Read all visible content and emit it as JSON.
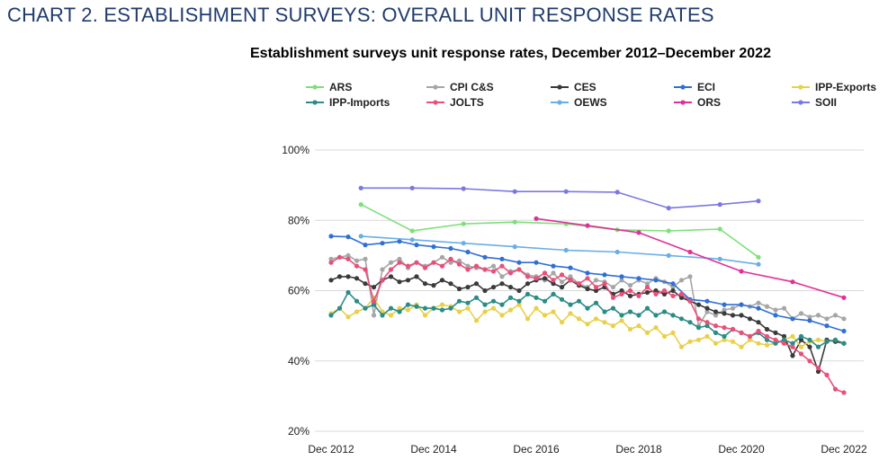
{
  "heading": "CHART 2. ESTABLISHMENT SURVEYS: OVERALL UNIT RESPONSE RATES",
  "chart_data": {
    "type": "line",
    "title": "Establishment surveys unit response rates, December 2012–December 2022",
    "xlabel": "",
    "ylabel": "",
    "x_range": [
      2012.917,
      2022.917
    ],
    "ylim": [
      20,
      100
    ],
    "y_ticks": [
      20,
      40,
      60,
      80,
      100
    ],
    "y_tick_labels": [
      "20%",
      "40%",
      "60%",
      "80%",
      "100%"
    ],
    "x_ticks": [
      2012.917,
      2014.917,
      2016.917,
      2018.917,
      2020.917,
      2022.917
    ],
    "x_tick_labels": [
      "Dec 2012",
      "Dec 2014",
      "Dec 2016",
      "Dec 2018",
      "Dec 2020",
      "Dec 2022"
    ],
    "grid": "horizontal",
    "legend_position": "top",
    "series": [
      {
        "name": "ARS",
        "color": "#7ee07a",
        "x": [
          2013.5,
          2014.5,
          2015.5,
          2016.5,
          2017.5,
          2018.5,
          2019.5,
          2020.5,
          2021.25
        ],
        "y": [
          84.5,
          77,
          79,
          79.5,
          79,
          77.3,
          77,
          77.5,
          69.5
        ]
      },
      {
        "name": "CPI C&S",
        "color": "#a6a6a6",
        "x": [
          2012.917,
          2013.083,
          2013.25,
          2013.417,
          2013.583,
          2013.75,
          2013.917,
          2014.083,
          2014.25,
          2014.417,
          2014.583,
          2014.75,
          2014.917,
          2015.083,
          2015.25,
          2015.417,
          2015.583,
          2015.75,
          2015.917,
          2016.083,
          2016.25,
          2016.417,
          2016.583,
          2016.75,
          2016.917,
          2017.083,
          2017.25,
          2017.417,
          2017.583,
          2017.75,
          2017.917,
          2018.083,
          2018.25,
          2018.417,
          2018.583,
          2018.75,
          2018.917,
          2019.083,
          2019.25,
          2019.417,
          2019.583,
          2019.75,
          2019.917,
          2020.083,
          2020.25,
          2020.417,
          2020.583,
          2020.75,
          2020.917,
          2021.083,
          2021.25,
          2021.417,
          2021.583,
          2021.75,
          2021.917,
          2022.083,
          2022.25,
          2022.417,
          2022.583,
          2022.75,
          2022.917
        ],
        "y": [
          69,
          69.5,
          70,
          68.5,
          69,
          53,
          66,
          68,
          69,
          66.5,
          68,
          67,
          68,
          69.5,
          68,
          68.5,
          67,
          66.5,
          66,
          67,
          64,
          65.5,
          66,
          64.5,
          64,
          63,
          65,
          62.5,
          64,
          62,
          61,
          63,
          62.5,
          61,
          63,
          61.5,
          63,
          62,
          63.5,
          62.5,
          61,
          63,
          64,
          50,
          54,
          53,
          54.5,
          55,
          56,
          55.5,
          56.5,
          55.5,
          54.5,
          55,
          52,
          53.5,
          52.5,
          53,
          52,
          53,
          52
        ]
      },
      {
        "name": "CES",
        "color": "#3a3a3a",
        "x": [
          2012.917,
          2013.083,
          2013.25,
          2013.417,
          2013.583,
          2013.75,
          2013.917,
          2014.083,
          2014.25,
          2014.417,
          2014.583,
          2014.75,
          2014.917,
          2015.083,
          2015.25,
          2015.417,
          2015.583,
          2015.75,
          2015.917,
          2016.083,
          2016.25,
          2016.417,
          2016.583,
          2016.75,
          2016.917,
          2017.083,
          2017.25,
          2017.417,
          2017.583,
          2017.75,
          2017.917,
          2018.083,
          2018.25,
          2018.417,
          2018.583,
          2018.75,
          2018.917,
          2019.083,
          2019.25,
          2019.417,
          2019.583,
          2019.75,
          2019.917,
          2020.083,
          2020.25,
          2020.417,
          2020.583,
          2020.75,
          2020.917,
          2021.083,
          2021.25,
          2021.417,
          2021.583,
          2021.75,
          2021.917,
          2022.083,
          2022.25,
          2022.417,
          2022.583,
          2022.75,
          2022.917
        ],
        "y": [
          63,
          64,
          64,
          63.5,
          62,
          61,
          63,
          64,
          62.5,
          63,
          64,
          62,
          61.5,
          63,
          62,
          60.5,
          61,
          62,
          60,
          61,
          62,
          61,
          60,
          62,
          63,
          63.5,
          62,
          61,
          63,
          61.5,
          60.5,
          60,
          61,
          59,
          60,
          58.5,
          59,
          59.5,
          60,
          59,
          60,
          58,
          57,
          56,
          55,
          54,
          53.5,
          53,
          53,
          52,
          51,
          49,
          48,
          47,
          41.5,
          46,
          44,
          37,
          46,
          45.5,
          45
        ]
      },
      {
        "name": "ECI",
        "color": "#2f6fd6",
        "x": [
          2012.917,
          2013.25,
          2013.583,
          2013.917,
          2014.25,
          2014.583,
          2014.917,
          2015.25,
          2015.583,
          2015.917,
          2016.25,
          2016.583,
          2016.917,
          2017.25,
          2017.583,
          2017.917,
          2018.25,
          2018.583,
          2018.917,
          2019.25,
          2019.583,
          2019.917,
          2020.25,
          2020.583,
          2020.917,
          2021.25,
          2021.583,
          2021.917,
          2022.25,
          2022.583,
          2022.917
        ],
        "y": [
          75.5,
          75.3,
          73,
          73.5,
          74,
          73,
          72.5,
          72,
          71,
          69.5,
          69,
          68,
          68,
          67,
          66.5,
          65,
          64.5,
          64,
          63.5,
          63,
          62,
          57.5,
          57,
          56,
          56,
          55,
          53,
          52,
          51.5,
          50,
          48.5
        ]
      },
      {
        "name": "IPP-Exports",
        "color": "#e8d04a",
        "x": [
          2012.917,
          2013.083,
          2013.25,
          2013.417,
          2013.583,
          2013.75,
          2013.917,
          2014.083,
          2014.25,
          2014.417,
          2014.583,
          2014.75,
          2014.917,
          2015.083,
          2015.25,
          2015.417,
          2015.583,
          2015.75,
          2015.917,
          2016.083,
          2016.25,
          2016.417,
          2016.583,
          2016.75,
          2016.917,
          2017.083,
          2017.25,
          2017.417,
          2017.583,
          2017.75,
          2017.917,
          2018.083,
          2018.25,
          2018.417,
          2018.583,
          2018.75,
          2018.917,
          2019.083,
          2019.25,
          2019.417,
          2019.583,
          2019.75,
          2019.917,
          2020.083,
          2020.25,
          2020.417,
          2020.583,
          2020.75,
          2020.917,
          2021.083,
          2021.25,
          2021.417,
          2021.583,
          2021.75,
          2021.917,
          2022.083,
          2022.25,
          2022.417,
          2022.583,
          2022.75,
          2022.917
        ],
        "y": [
          53.5,
          55,
          52.5,
          54,
          55,
          58,
          54,
          53,
          55,
          54.5,
          56,
          53,
          55,
          56,
          55.5,
          54,
          55,
          51.5,
          54,
          55,
          53,
          54.5,
          56,
          52,
          55,
          53,
          54,
          51,
          53.5,
          52,
          50.5,
          52,
          51,
          50,
          51.5,
          49,
          50,
          48,
          49.5,
          47,
          48,
          44,
          45.5,
          46,
          47,
          45,
          46,
          45.5,
          44,
          46,
          45,
          44.5,
          45,
          46,
          47,
          44,
          45.5,
          46,
          45.5,
          46,
          45
        ]
      },
      {
        "name": "IPP-Imports",
        "color": "#2a8c86",
        "x": [
          2012.917,
          2013.083,
          2013.25,
          2013.417,
          2013.583,
          2013.75,
          2013.917,
          2014.083,
          2014.25,
          2014.417,
          2014.583,
          2014.75,
          2014.917,
          2015.083,
          2015.25,
          2015.417,
          2015.583,
          2015.75,
          2015.917,
          2016.083,
          2016.25,
          2016.417,
          2016.583,
          2016.75,
          2016.917,
          2017.083,
          2017.25,
          2017.417,
          2017.583,
          2017.75,
          2017.917,
          2018.083,
          2018.25,
          2018.417,
          2018.583,
          2018.75,
          2018.917,
          2019.083,
          2019.25,
          2019.417,
          2019.583,
          2019.75,
          2019.917,
          2020.083,
          2020.25,
          2020.417,
          2020.583,
          2020.75,
          2020.917,
          2021.083,
          2021.25,
          2021.417,
          2021.583,
          2021.75,
          2021.917,
          2022.083,
          2022.25,
          2022.417,
          2022.583,
          2022.75,
          2022.917
        ],
        "y": [
          53,
          55,
          59.5,
          57,
          55,
          56,
          53,
          55,
          54,
          56,
          55.5,
          55,
          55,
          54.5,
          55,
          57,
          56.5,
          58,
          56,
          57,
          56,
          58,
          57,
          59,
          58,
          57,
          59,
          57.5,
          56,
          57,
          55,
          56.5,
          54,
          55,
          53,
          54,
          53,
          55,
          53,
          54,
          53,
          52,
          51,
          49.5,
          50,
          48,
          47,
          49,
          48,
          47,
          48,
          46,
          45,
          46,
          45,
          47,
          46,
          44,
          45.5,
          46,
          45
        ]
      },
      {
        "name": "JOLTS",
        "color": "#e8507a",
        "x": [
          2012.917,
          2013.083,
          2013.25,
          2013.417,
          2013.583,
          2013.75,
          2013.917,
          2014.083,
          2014.25,
          2014.417,
          2014.583,
          2014.75,
          2014.917,
          2015.083,
          2015.25,
          2015.417,
          2015.583,
          2015.75,
          2015.917,
          2016.083,
          2016.25,
          2016.417,
          2016.583,
          2016.75,
          2016.917,
          2017.083,
          2017.25,
          2017.417,
          2017.583,
          2017.75,
          2017.917,
          2018.083,
          2018.25,
          2018.417,
          2018.583,
          2018.75,
          2018.917,
          2019.083,
          2019.25,
          2019.417,
          2019.583,
          2019.75,
          2019.917,
          2020.083,
          2020.25,
          2020.417,
          2020.583,
          2020.75,
          2020.917,
          2021.083,
          2021.25,
          2021.417,
          2021.583,
          2021.75,
          2021.917,
          2022.083,
          2022.25,
          2022.417,
          2022.583,
          2022.75,
          2022.917
        ],
        "y": [
          68,
          69.5,
          69,
          67,
          66,
          57,
          63,
          66,
          68,
          67,
          68,
          66.5,
          68,
          67,
          69,
          67.5,
          66,
          67,
          66,
          65.5,
          67,
          65,
          66,
          64,
          63.5,
          65,
          63,
          64.5,
          63,
          62,
          63.5,
          61,
          62,
          58,
          59,
          60,
          58.5,
          61,
          59,
          60,
          58.5,
          59,
          57,
          52,
          51,
          50,
          49.5,
          49,
          48,
          47,
          48.5,
          47,
          46,
          45,
          44,
          42,
          40,
          38,
          36,
          32,
          31
        ]
      },
      {
        "name": "OEWS",
        "color": "#6aaee6",
        "x": [
          2013.5,
          2014.5,
          2015.5,
          2016.5,
          2017.5,
          2018.5,
          2019.5,
          2020.5,
          2021.25
        ],
        "y": [
          75.5,
          74.5,
          73.5,
          72.5,
          71.5,
          71,
          70,
          69,
          67.5
        ]
      },
      {
        "name": "ORS",
        "color": "#e0309a",
        "x": [
          2016.917,
          2017.917,
          2018.917,
          2019.917,
          2020.917,
          2021.917,
          2022.917
        ],
        "y": [
          80.5,
          78.5,
          76.5,
          71,
          65.5,
          62.5,
          58
        ]
      },
      {
        "name": "SOII",
        "color": "#7a78e2",
        "x": [
          2013.5,
          2014.5,
          2015.5,
          2016.5,
          2017.5,
          2018.5,
          2019.5,
          2020.5,
          2021.25
        ],
        "y": [
          89.2,
          89.2,
          89,
          88.2,
          88.2,
          88,
          83.5,
          84.5,
          85.5
        ]
      }
    ]
  }
}
